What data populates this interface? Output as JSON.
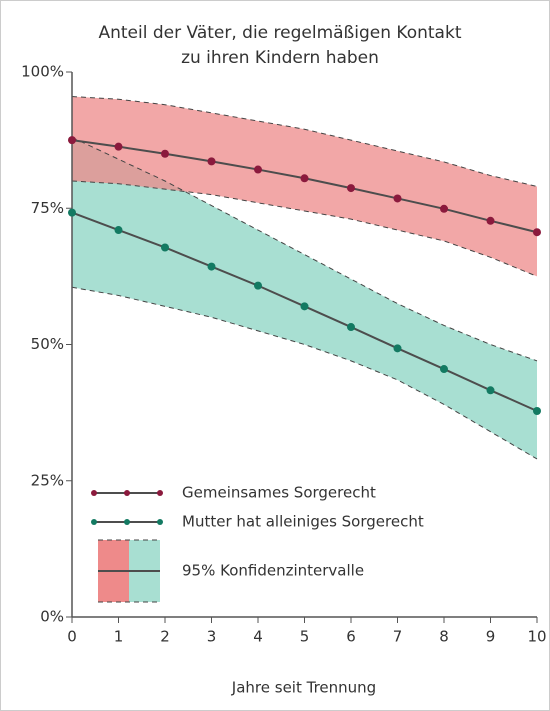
{
  "chart_data": {
    "type": "line",
    "title": [
      "Anteil der Väter, die regelmäßigen Kontakt",
      "zu ihren Kindern haben"
    ],
    "x_label": "Jahre seit Trennung",
    "x": [
      0,
      1,
      2,
      3,
      4,
      5,
      6,
      7,
      8,
      9,
      10
    ],
    "xlim": [
      0,
      10
    ],
    "xticks": [
      0,
      1,
      2,
      3,
      4,
      5,
      6,
      7,
      8,
      9,
      10
    ],
    "ylim": [
      0,
      100
    ],
    "yticks": [
      {
        "value": 0,
        "label": "0%"
      },
      {
        "value": 25,
        "label": "25%"
      },
      {
        "value": 50,
        "label": "50%"
      },
      {
        "value": 75,
        "label": "75%"
      },
      {
        "value": 100,
        "label": "100%"
      }
    ],
    "line_color": "#4d4d4d",
    "series": [
      {
        "name": "Gemeinsames Sorgerecht",
        "color": "#8b1a3d",
        "band_color": "#ee8a8a",
        "values": [
          87.5,
          86.3,
          85,
          83.6,
          82.1,
          80.5,
          78.7,
          76.8,
          74.9,
          72.7,
          70.6
        ],
        "upper": [
          95.5,
          95,
          94,
          92.5,
          91,
          89.5,
          87.5,
          85.5,
          83.5,
          81,
          79
        ],
        "lower": [
          80,
          79.5,
          78.5,
          77.5,
          76,
          74.5,
          73,
          71,
          69,
          66,
          62.5
        ]
      },
      {
        "name": "Mutter hat alleiniges Sorgerecht",
        "color": "#137a62",
        "band_color": "#a8dfd2",
        "values": [
          74.2,
          71,
          67.8,
          64.3,
          60.8,
          57,
          53.2,
          49.3,
          45.5,
          41.6,
          37.8
        ],
        "upper": [
          88,
          84,
          80,
          75.5,
          71,
          66.5,
          62,
          57.5,
          53.5,
          50,
          47
        ],
        "lower": [
          60.5,
          59,
          57,
          55,
          52.5,
          50,
          47,
          43.5,
          39,
          34,
          29
        ]
      }
    ],
    "ci_label": "95% Konfidenzintervalle"
  }
}
